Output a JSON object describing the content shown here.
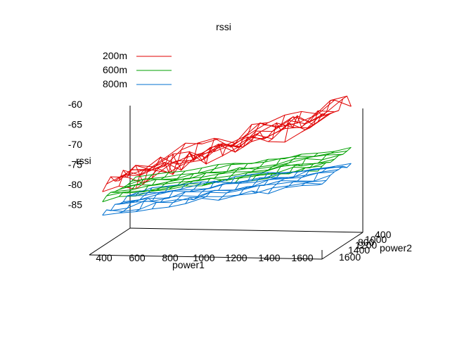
{
  "chart_data": {
    "type": "wireframe-3d",
    "title": "rssi",
    "xlabel": "power1",
    "ylabel": "power2",
    "zlabel": "rssi",
    "x_ticks": [
      "400",
      "600",
      "800",
      "1000",
      "1200",
      "1400",
      "1600"
    ],
    "y_ticks": [
      "400",
      "800",
      "1000",
      "1200",
      "1400",
      "1600"
    ],
    "z_ticks": [
      "-60",
      "-65",
      "-70",
      "-75",
      "-80",
      "-85"
    ],
    "xlim": [
      350,
      1700
    ],
    "ylim": [
      350,
      1700
    ],
    "zlim": [
      -90,
      -58
    ],
    "legend_position": "top-left",
    "series": [
      {
        "name": "200m",
        "color": "#e00000",
        "z_at_x_min": -77,
        "z_at_x_max": -62,
        "noise": 2.0
      },
      {
        "name": "600m",
        "color": "#00a000",
        "z_at_x_min": -79,
        "z_at_x_max": -72,
        "noise": 0.5
      },
      {
        "name": "800m",
        "color": "#0070d0",
        "z_at_x_min": -82,
        "z_at_x_max": -75,
        "noise": 0.6
      }
    ]
  }
}
